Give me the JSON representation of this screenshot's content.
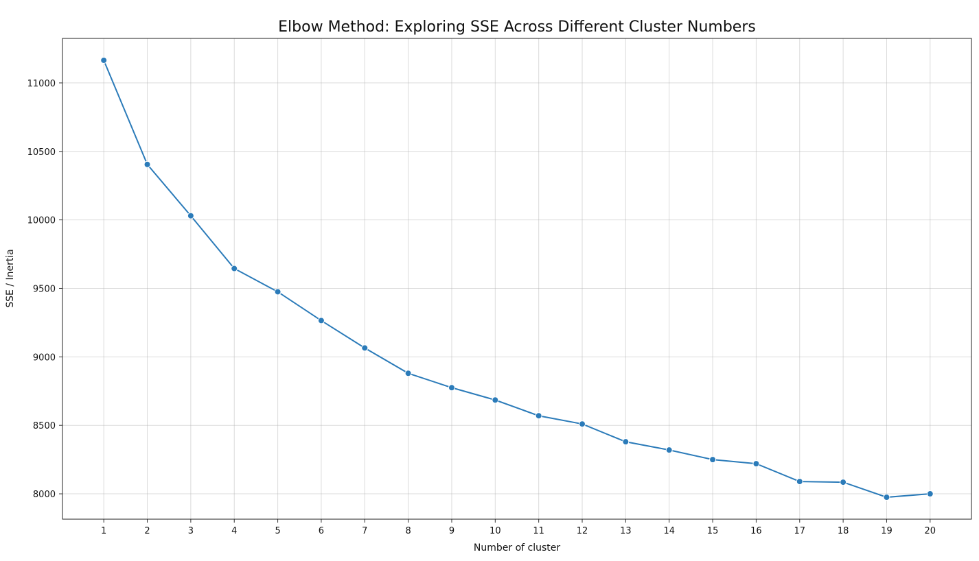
{
  "chart_data": {
    "type": "line",
    "title": "Elbow Method: Exploring SSE Across Different Cluster Numbers",
    "xlabel": "Number of cluster",
    "ylabel": "SSE / Inertia",
    "x": [
      1,
      2,
      3,
      4,
      5,
      6,
      7,
      8,
      9,
      10,
      11,
      12,
      13,
      14,
      15,
      16,
      17,
      18,
      19,
      20
    ],
    "series": [
      {
        "values": [
          11165,
          10405,
          10030,
          9645,
          9475,
          9265,
          9065,
          8880,
          8775,
          8685,
          8570,
          8510,
          8380,
          8320,
          8250,
          8220,
          8090,
          8085,
          7975,
          8000
        ],
        "color": "#2b7bb9",
        "marker": "circle"
      }
    ],
    "xlim": [
      0.05,
      20.95
    ],
    "ylim": [
      7815,
      11325
    ],
    "xticks": [
      "1",
      "2",
      "3",
      "4",
      "5",
      "6",
      "7",
      "8",
      "9",
      "10",
      "11",
      "12",
      "13",
      "14",
      "15",
      "16",
      "17",
      "18",
      "19",
      "20"
    ],
    "yticks": [
      "8000",
      "8500",
      "9000",
      "9500",
      "10000",
      "10500",
      "11000"
    ],
    "grid": true
  }
}
